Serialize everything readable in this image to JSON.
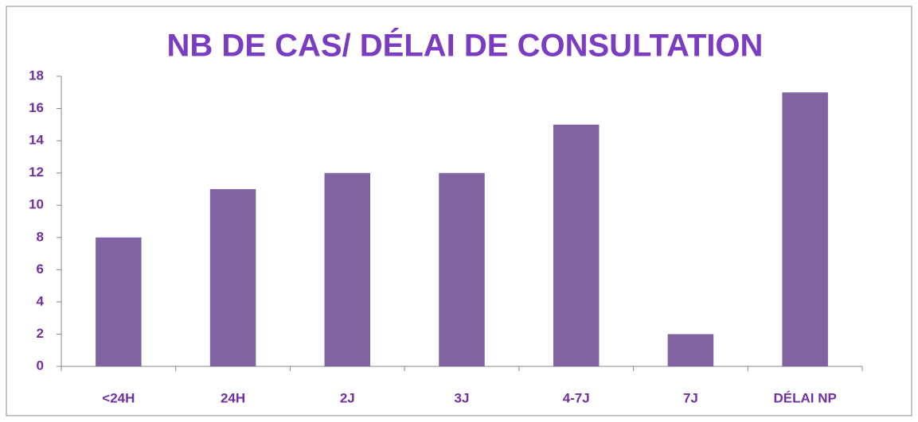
{
  "chart_data": {
    "type": "bar",
    "title": "NB DE CAS/ DÉLAI DE CONSULTATION",
    "categories": [
      "<24H",
      "24H",
      "2J",
      "3J",
      "4-7J",
      "7J",
      "DÉLAI NP"
    ],
    "values": [
      8,
      11,
      12,
      12,
      15,
      2,
      17
    ],
    "color": "#8064a2",
    "ylim": [
      0,
      18
    ],
    "yticks": [
      0,
      2,
      4,
      6,
      8,
      10,
      12,
      14,
      16,
      18
    ],
    "grid": false
  }
}
